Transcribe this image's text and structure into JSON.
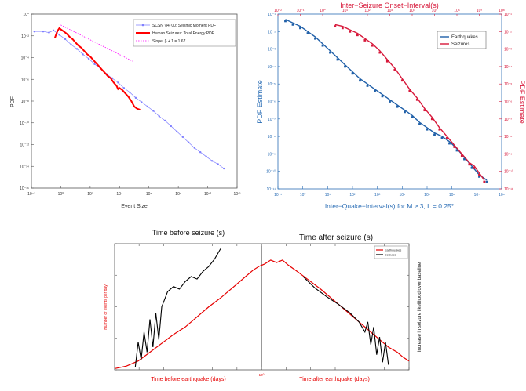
{
  "chart_data": [
    {
      "type": "line",
      "panel": "top-left",
      "title": "",
      "xlabel": "Event Size",
      "ylabel": "PDF",
      "xscale": "log",
      "yscale": "log",
      "xlim_exp": [
        -2,
        12
      ],
      "ylim_exp": [
        -16,
        0
      ],
      "x_tick_labels": [
        "10⁻²",
        "10⁰",
        "10²",
        "10⁴",
        "10⁶",
        "10⁸",
        "10¹⁰",
        "10¹²"
      ],
      "y_tick_labels": [
        "10⁰",
        "10⁻²",
        "10⁻⁴",
        "10⁻⁶",
        "10⁻⁸",
        "10⁻¹⁰",
        "10⁻¹²",
        "10⁻¹⁴",
        "10⁻¹⁶"
      ],
      "legend_position": "top-right",
      "series": [
        {
          "name": "SCSN '84-'00: Seismic Moment PDF",
          "color": "#7f7fff",
          "style": "line-marker",
          "x_exp": [
            -1.8,
            -1.2,
            -0.8,
            -0.5,
            -0.1,
            0.3,
            0.7,
            1.1,
            1.5,
            1.9,
            2.3,
            2.7,
            3.1,
            3.5,
            3.9,
            4.3,
            4.7,
            5.1,
            5.5,
            5.9,
            6.3,
            6.7,
            7.1,
            7.5,
            7.9,
            8.3,
            8.7,
            9.1,
            9.5,
            9.9,
            10.3,
            10.7,
            11.1
          ],
          "y_exp": [
            -1.6,
            -1.6,
            -1.7,
            -1.5,
            -1.9,
            -2.3,
            -2.8,
            -3.2,
            -3.7,
            -4.1,
            -4.6,
            -5.0,
            -5.5,
            -5.9,
            -6.3,
            -6.8,
            -7.2,
            -7.7,
            -8.1,
            -8.5,
            -8.9,
            -9.4,
            -9.8,
            -10.3,
            -10.8,
            -11.3,
            -11.8,
            -12.3,
            -12.7,
            -13.1,
            -13.5,
            -13.8,
            -14.2
          ]
        },
        {
          "name": "Human Seizures: Total Energy PDF",
          "color": "#ff0000",
          "style": "thick-line",
          "x_exp": [
            -0.4,
            -0.3,
            -0.2,
            -0.1,
            0.0,
            0.2,
            0.4,
            0.6,
            0.8,
            1.0,
            1.2,
            1.4,
            1.6,
            1.8,
            2.0,
            2.2,
            2.4,
            2.6,
            2.8,
            3.0,
            3.2,
            3.4,
            3.6,
            3.8,
            3.9,
            4.0,
            4.2,
            4.4,
            4.6,
            4.8,
            5.0,
            5.2,
            5.4
          ],
          "y_exp": [
            -2.2,
            -1.8,
            -1.5,
            -1.3,
            -1.4,
            -1.6,
            -1.8,
            -2.1,
            -2.3,
            -2.6,
            -2.9,
            -3.1,
            -3.4,
            -3.7,
            -3.9,
            -4.2,
            -4.5,
            -4.8,
            -5.1,
            -5.4,
            -5.7,
            -5.9,
            -6.3,
            -6.6,
            -6.9,
            -6.8,
            -7.0,
            -7.3,
            -7.6,
            -8.0,
            -8.5,
            -8.7,
            -8.8
          ]
        },
        {
          "name": "Slope: β + 1 = 1.67",
          "color": "#ff00ff",
          "style": "dotted",
          "x_exp": [
            0.0,
            5.0
          ],
          "y_exp": [
            -1.0,
            -4.4
          ]
        }
      ]
    },
    {
      "type": "scatter",
      "panel": "top-right",
      "title": "Inter−Seizure Onset−Interval(s)",
      "xlabel": "Inter−Quake−Interval(s) for M ≥ 3, L = 0.25°",
      "ylabel": "PDF Estimate",
      "ylabel_right": "PDF Estimate",
      "xscale": "log",
      "yscale": "log",
      "bottom_x_ticks": [
        "10⁻¹",
        "10⁰",
        "10¹",
        "10²",
        "10³",
        "10⁴",
        "10⁵",
        "10⁶",
        "10⁷",
        "10⁸"
      ],
      "top_x_ticks": [
        "10⁻²",
        "10⁻¹",
        "10⁰",
        "10¹",
        "10²",
        "10³",
        "10⁴",
        "10⁵",
        "10⁶",
        "10⁷",
        "10⁸"
      ],
      "y_ticks_left": [
        "10⁻¹",
        "10⁻²",
        "10⁻³",
        "10⁻⁴",
        "10⁻⁵",
        "10⁻⁶",
        "10⁻⁷",
        "10⁻⁸",
        "10⁻⁹",
        "10⁻¹⁰",
        "10⁻¹¹"
      ],
      "y_ticks_right": [
        "10⁻¹",
        "10⁻²",
        "10⁻³",
        "10⁻⁴",
        "10⁻⁵",
        "10⁻⁶",
        "10⁻⁷",
        "10⁻⁸",
        "10⁻⁹",
        "10⁻¹⁰",
        "10⁻¹¹"
      ],
      "legend_position": "top-right",
      "series": [
        {
          "name": "Earthquakes",
          "color": "#1f5fa8",
          "points_x_exp": [
            -0.7,
            -0.4,
            -0.1,
            0.2,
            0.5,
            0.8,
            1.1,
            1.4,
            1.7,
            2.0,
            2.3,
            2.6,
            2.9,
            3.2,
            3.5,
            3.8,
            4.1,
            4.4,
            4.7,
            5.0,
            5.3,
            5.6,
            5.9,
            6.2,
            6.5,
            6.8,
            7.1,
            7.4
          ],
          "points_y_exp": [
            -1.4,
            -1.6,
            -1.8,
            -2.1,
            -2.4,
            -2.8,
            -3.2,
            -3.6,
            -4.0,
            -4.4,
            -4.8,
            -5.1,
            -5.4,
            -5.7,
            -6.0,
            -6.3,
            -6.6,
            -6.9,
            -7.3,
            -7.6,
            -7.9,
            -8.1,
            -8.4,
            -8.8,
            -9.3,
            -9.8,
            -10.3,
            -10.6
          ],
          "fit_x_exp": [
            -0.7,
            7.6
          ],
          "fit_y_exp": [
            -1.5,
            -10.8
          ]
        },
        {
          "name": "Seizures",
          "color": "#d7183a",
          "points_x_exp": [
            1.3,
            1.6,
            1.9,
            2.2,
            2.5,
            2.8,
            3.1,
            3.4,
            3.7,
            4.0,
            4.3,
            4.6,
            4.9,
            5.2,
            5.5,
            5.8,
            6.1,
            6.4,
            6.7,
            6.9,
            7.1,
            7.3
          ],
          "points_y_exp": [
            -1.7,
            -1.8,
            -2.0,
            -2.2,
            -2.5,
            -2.8,
            -3.2,
            -3.7,
            -4.2,
            -4.8,
            -5.4,
            -5.9,
            -6.5,
            -7.0,
            -7.6,
            -8.1,
            -8.6,
            -9.1,
            -9.6,
            -9.8,
            -10.2,
            -10.6
          ],
          "fit_x_exp": [
            1.3,
            7.3
          ],
          "fit_y_exp": [
            -1.8,
            -10.5
          ]
        }
      ]
    },
    {
      "type": "line",
      "panel": "bottom",
      "title_left": "Time before seizure (s)",
      "title_right": "Time after seizure (s)",
      "xlabel_left": "Time before earthquake (days)",
      "xlabel_right": "Time after earthquake (days)",
      "ylabel_left": "Number of events per day",
      "ylabel_right": "Increase in seizure likelihood over baseline",
      "xscale": "log",
      "yscale": "log",
      "center_label": "10⁰",
      "legend_position": "top-right",
      "series": [
        {
          "name": "Earthquakes",
          "color": "#e60000"
        },
        {
          "name": "Seizures",
          "color": "#000000"
        }
      ]
    }
  ]
}
